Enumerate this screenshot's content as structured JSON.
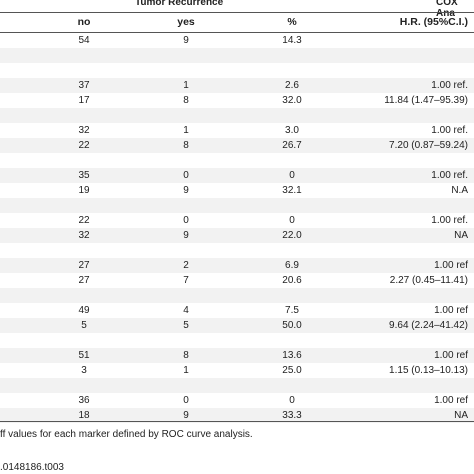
{
  "headers": {
    "group1": "Tumor Recurrence",
    "group2": "COX Ana",
    "col_no": "no",
    "col_yes": "yes",
    "col_pct": "%",
    "col_hr": "H.R. (95%C.I.)"
  },
  "rows": [
    {
      "no": "54",
      "yes": "9",
      "pct": "14.3",
      "hr": ""
    },
    {
      "no": "",
      "yes": "",
      "pct": "",
      "hr": ""
    },
    {
      "no": "",
      "yes": "",
      "pct": "",
      "hr": ""
    },
    {
      "no": "37",
      "yes": "1",
      "pct": "2.6",
      "hr": "1.00 ref."
    },
    {
      "no": "17",
      "yes": "8",
      "pct": "32.0",
      "hr": "11.84 (1.47–95.39)"
    },
    {
      "no": "",
      "yes": "",
      "pct": "",
      "hr": ""
    },
    {
      "no": "32",
      "yes": "1",
      "pct": "3.0",
      "hr": "1.00 ref."
    },
    {
      "no": "22",
      "yes": "8",
      "pct": "26.7",
      "hr": "7.20 (0.87–59.24)"
    },
    {
      "no": "",
      "yes": "",
      "pct": "",
      "hr": ""
    },
    {
      "no": "35",
      "yes": "0",
      "pct": "0",
      "hr": "1.00 ref."
    },
    {
      "no": "19",
      "yes": "9",
      "pct": "32.1",
      "hr": "N.A"
    },
    {
      "no": "",
      "yes": "",
      "pct": "",
      "hr": ""
    },
    {
      "no": "22",
      "yes": "0",
      "pct": "0",
      "hr": "1.00 ref."
    },
    {
      "no": "32",
      "yes": "9",
      "pct": "22.0",
      "hr": "NA"
    },
    {
      "no": "",
      "yes": "",
      "pct": "",
      "hr": ""
    },
    {
      "no": "27",
      "yes": "2",
      "pct": "6.9",
      "hr": "1.00 ref"
    },
    {
      "no": "27",
      "yes": "7",
      "pct": "20.6",
      "hr": "2.27 (0.45–11.41)"
    },
    {
      "no": "",
      "yes": "",
      "pct": "",
      "hr": ""
    },
    {
      "no": "49",
      "yes": "4",
      "pct": "7.5",
      "hr": "1.00 ref"
    },
    {
      "no": "5",
      "yes": "5",
      "pct": "50.0",
      "hr": "9.64 (2.24–41.42)"
    },
    {
      "no": "",
      "yes": "",
      "pct": "",
      "hr": ""
    },
    {
      "no": "51",
      "yes": "8",
      "pct": "13.6",
      "hr": "1.00 ref"
    },
    {
      "no": "3",
      "yes": "1",
      "pct": "25.0",
      "hr": "1.15 (0.13–10.13)"
    },
    {
      "no": "",
      "yes": "",
      "pct": "",
      "hr": ""
    },
    {
      "no": "36",
      "yes": "0",
      "pct": "0",
      "hr": "1.00 ref"
    },
    {
      "no": "18",
      "yes": "9",
      "pct": "33.3",
      "hr": "NA"
    }
  ],
  "footnote": "ff values for each marker defined by ROC curve analysis.",
  "doi": ".0148186.t003"
}
